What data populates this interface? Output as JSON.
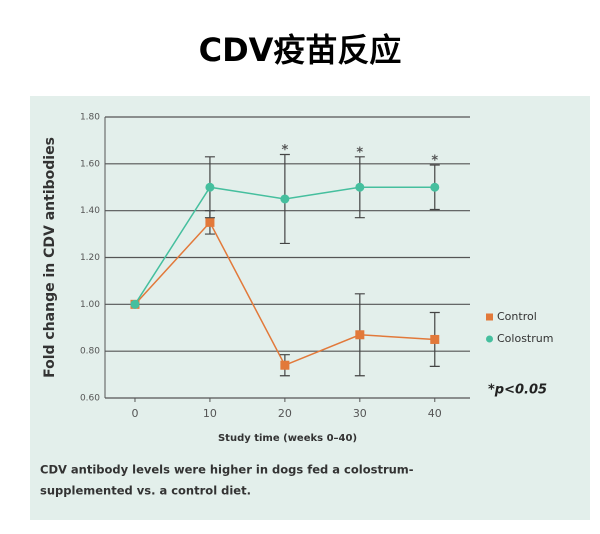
{
  "header": {
    "title": "CDV疫苗反应"
  },
  "chart_data": {
    "type": "line",
    "x": [
      0,
      10,
      20,
      30,
      40
    ],
    "xlim": [
      -4,
      44.7
    ],
    "xticks": [
      0,
      10,
      20,
      30,
      40
    ],
    "ylim": [
      0.6,
      1.8
    ],
    "yticks": [
      {
        "value": 0.6,
        "label": "0.60"
      },
      {
        "value": 0.8,
        "label": "0.80"
      },
      {
        "value": 1.0,
        "label": "1.00"
      },
      {
        "value": 1.2,
        "label": "1.20"
      },
      {
        "value": 1.4,
        "label": "1.40"
      },
      {
        "value": 1.6,
        "label": "1.60"
      },
      {
        "value": 1.8,
        "label": "1.80"
      }
    ],
    "grid": true,
    "ylabel": "Fold change in CDV antibodies",
    "xlabel": "Study time (weeks 0–40)",
    "legend": "right",
    "series": [
      {
        "name": "Control",
        "color": "#e2793a",
        "marker": "square",
        "values": [
          1.0,
          1.35,
          0.74,
          0.87,
          0.85
        ],
        "errors": [
          0,
          0.05,
          0.045,
          0.175,
          0.115
        ]
      },
      {
        "name": "Colostrum",
        "color": "#45bf9e",
        "marker": "circle",
        "values": [
          1.0,
          1.5,
          1.45,
          1.5,
          1.5
        ],
        "errors": [
          0,
          0.13,
          0.19,
          0.13,
          0.095
        ]
      }
    ],
    "significance_symbol": "*",
    "significant_x": [
      20,
      30,
      40
    ],
    "annotation": "*p<0.05",
    "caption": [
      "CDV antibody levels were higher in dogs fed a colostrum-",
      "supplemented vs. a control diet."
    ]
  }
}
